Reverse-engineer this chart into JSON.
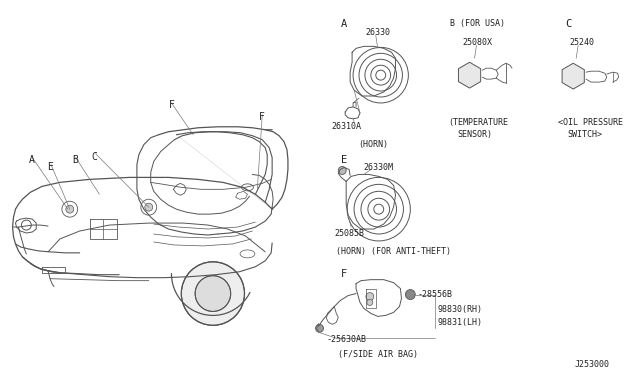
{
  "bg_color": "#ffffff",
  "line_color": "#555555",
  "text_color": "#222222",
  "fig_width": 6.4,
  "fig_height": 3.72,
  "part_number": "J253000",
  "font_size": 6.0,
  "sections": {
    "A_label": "A",
    "B_label": "B (FOR USA)",
    "C_label": "C",
    "E_label": "E",
    "F_label": "F",
    "horn_part": "26330",
    "horn_small": "26310A",
    "horn_caption": "(HORN)",
    "temp_part": "25080X",
    "temp_cap1": "(TEMPERATURE",
    "temp_cap2": "SENSOR)",
    "oil_part": "25240",
    "oil_cap1": "<OIL PRESSURE",
    "oil_cap2": "SWITCH>",
    "horn2_part": "26330M",
    "horn2_small": "25085B",
    "horn2_cap": "(HORN) (FOR ANTI-THEFT)",
    "f_label2": "F",
    "airbag_bolt": "-28556B",
    "airbag_rh": "98830(RH)",
    "airbag_lh": "98831(LH)",
    "airbag_part": "-25630AB",
    "airbag_cap": "(F/SIDE AIR BAG)"
  }
}
